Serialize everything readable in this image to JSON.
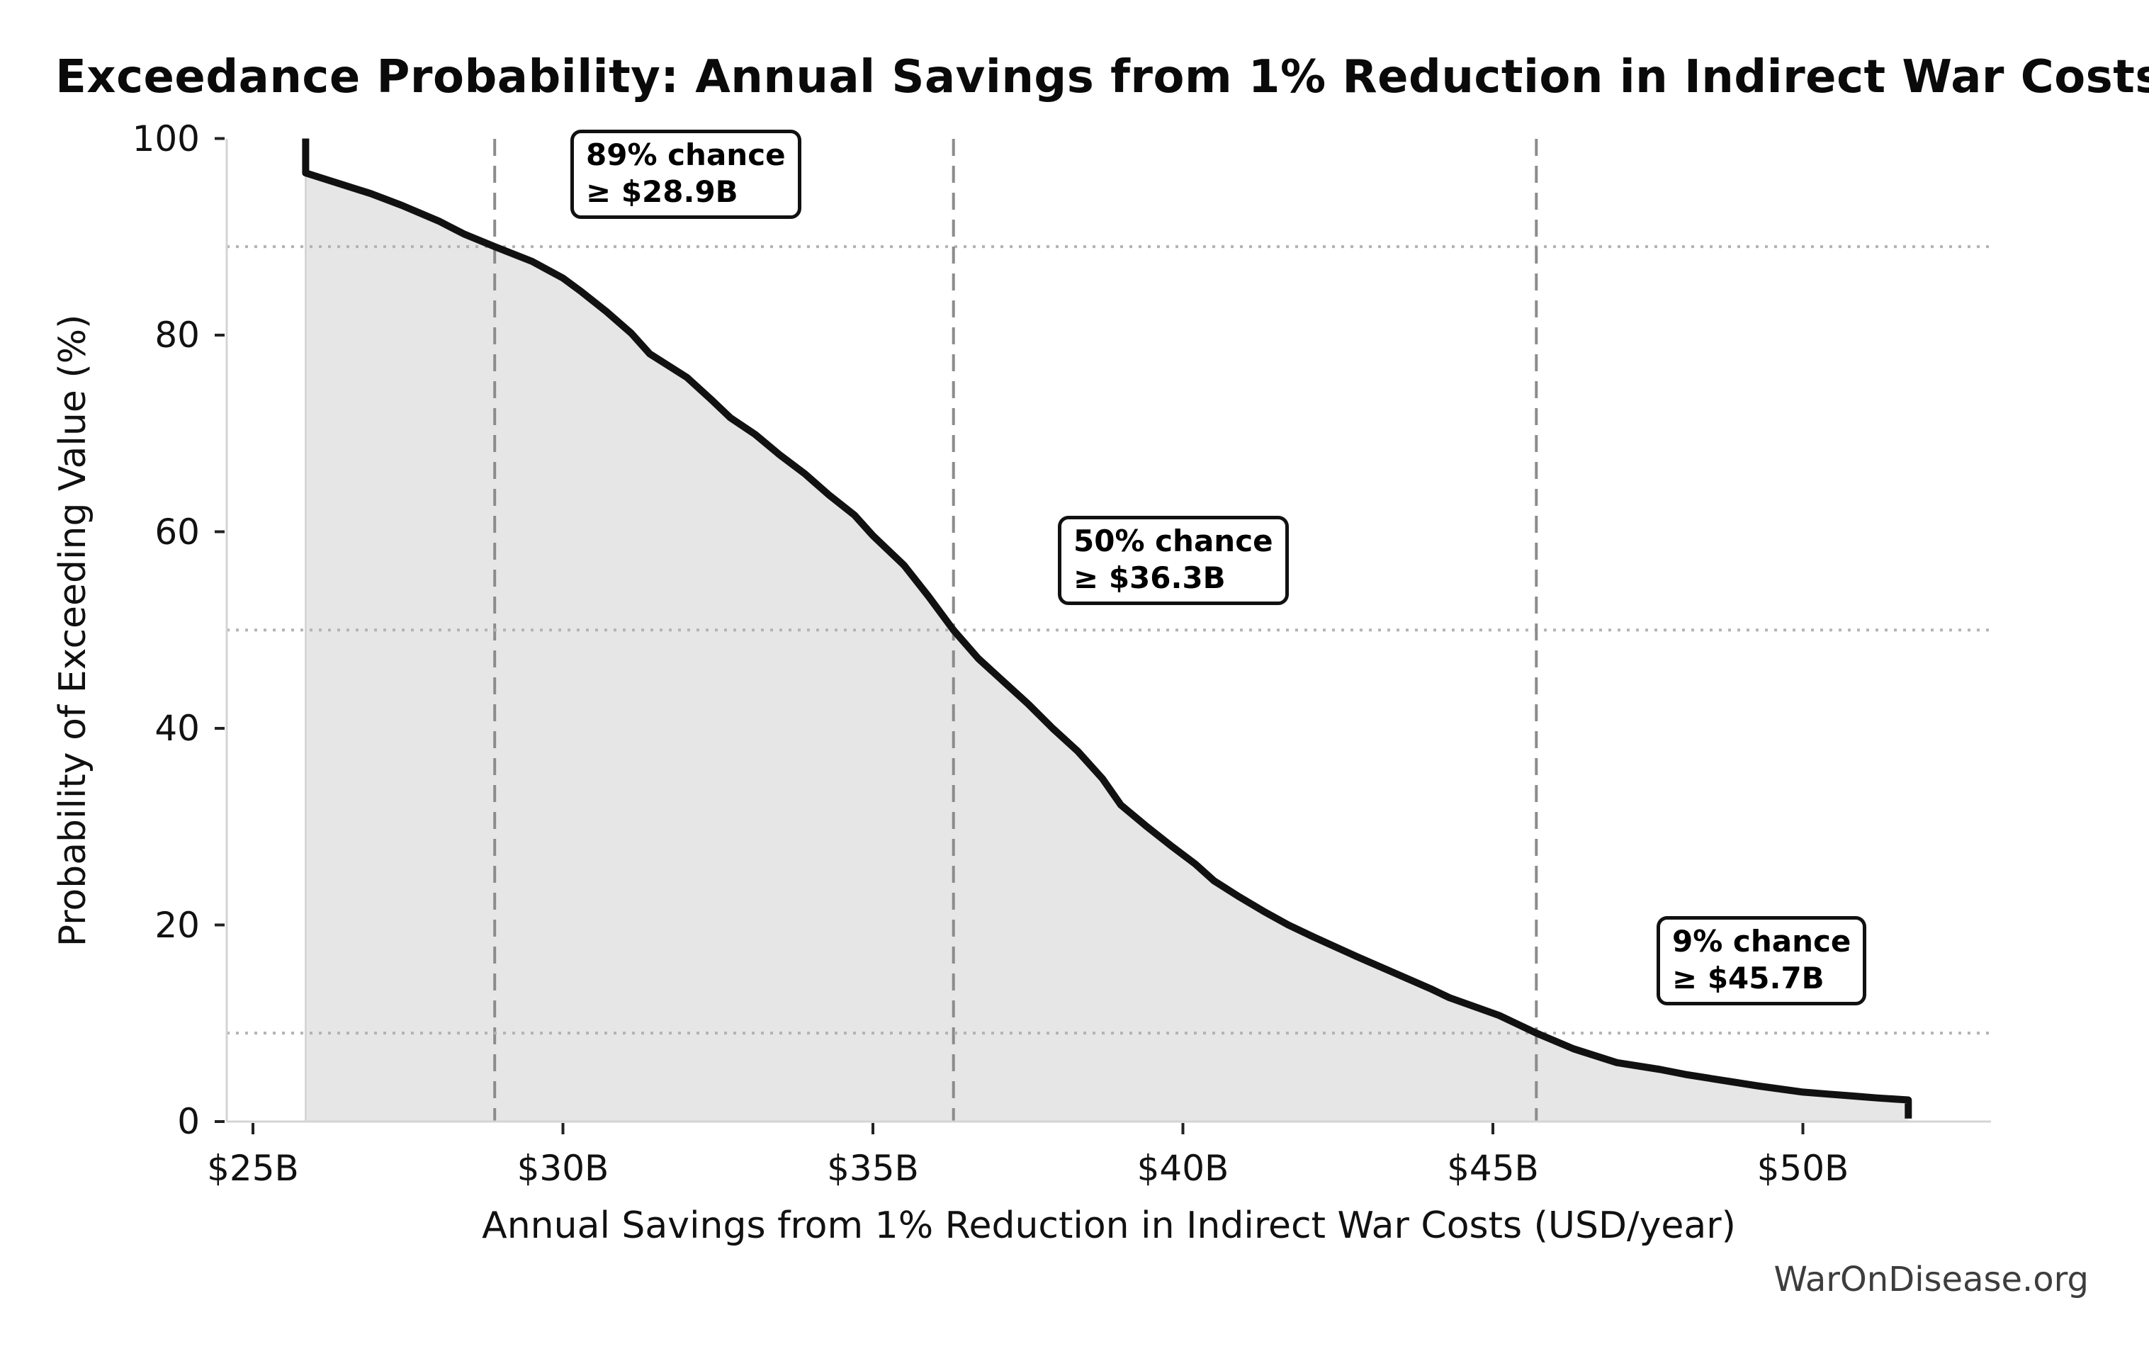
{
  "title": "Exceedance Probability: Annual Savings from 1% Reduction in Indirect War Costs",
  "watermark": "WarOnDisease.org",
  "axes": {
    "x_label": "Annual Savings from 1% Reduction in Indirect War Costs (USD/year)",
    "y_label": "Probability of Exceeding Value (%)",
    "x_tick_labels": [
      "$25B",
      "$30B",
      "$35B",
      "$40B",
      "$45B",
      "$50B"
    ],
    "x_tick_values": [
      25,
      30,
      35,
      40,
      45,
      50
    ],
    "y_tick_labels": [
      "0",
      "20",
      "40",
      "60",
      "80",
      "100"
    ],
    "y_tick_values": [
      0,
      20,
      40,
      60,
      80,
      100
    ]
  },
  "annotations": [
    {
      "percent_label": "89% chance",
      "value_label": "≥ $28.9B",
      "value_billion": 28.9,
      "probability_percent": 89
    },
    {
      "percent_label": "50% chance",
      "value_label": "≥ $36.3B",
      "value_billion": 36.3,
      "probability_percent": 50
    },
    {
      "percent_label": "9% chance",
      "value_label": "≥ $45.7B",
      "value_billion": 45.7,
      "probability_percent": 9
    }
  ],
  "colors": {
    "background": "#ffffff",
    "curve": "#111111",
    "area_fill": "#e6e6e6",
    "area_edge": "#d2d2d2",
    "spine": "#d4d4d4",
    "tick_mark": "#222222",
    "dashed_line": "#8c8c8c",
    "dotted_line": "#b3b3b3",
    "watermark_text": "#3d3d3d"
  },
  "chart_data": {
    "type": "line",
    "subtype": "exceedance-survival-curve",
    "title": "Exceedance Probability: Annual Savings from 1% Reduction in Indirect War Costs",
    "xlabel": "Annual Savings from 1% Reduction in Indirect War Costs (USD/year)",
    "ylabel": "Probability of Exceeding Value (%)",
    "x_unit": "billion USD per year",
    "xlim": [
      24.6,
      53.0
    ],
    "ylim": [
      0,
      100
    ],
    "grid": "dotted horizontal lines at annotated probabilities; dashed vertical lines at annotated values",
    "legend_position": "none",
    "thresholds": [
      {
        "probability_percent": 89,
        "value_billion": 28.9
      },
      {
        "probability_percent": 50,
        "value_billion": 36.3
      },
      {
        "probability_percent": 9,
        "value_billion": 45.7
      }
    ],
    "series": [
      {
        "name": "Probability of exceeding annual savings value",
        "style": "thick black curve with light gray area filled to y=0",
        "points": [
          [
            25.85,
            100.0
          ],
          [
            25.85,
            96.5
          ],
          [
            26.3,
            95.6
          ],
          [
            26.9,
            94.4
          ],
          [
            27.4,
            93.2
          ],
          [
            28.0,
            91.6
          ],
          [
            28.4,
            90.3
          ],
          [
            28.9,
            89.0
          ],
          [
            29.5,
            87.5
          ],
          [
            30.0,
            85.8
          ],
          [
            30.3,
            84.4
          ],
          [
            30.7,
            82.4
          ],
          [
            31.1,
            80.2
          ],
          [
            31.4,
            78.1
          ],
          [
            32.0,
            75.7
          ],
          [
            32.4,
            73.4
          ],
          [
            32.7,
            71.6
          ],
          [
            33.1,
            69.9
          ],
          [
            33.5,
            67.8
          ],
          [
            33.9,
            65.9
          ],
          [
            34.3,
            63.7
          ],
          [
            34.7,
            61.7
          ],
          [
            35.0,
            59.6
          ],
          [
            35.5,
            56.6
          ],
          [
            35.9,
            53.4
          ],
          [
            36.3,
            50.0
          ],
          [
            36.7,
            47.1
          ],
          [
            37.1,
            44.8
          ],
          [
            37.5,
            42.5
          ],
          [
            37.9,
            40.0
          ],
          [
            38.3,
            37.7
          ],
          [
            38.7,
            34.9
          ],
          [
            39.0,
            32.2
          ],
          [
            39.4,
            30.1
          ],
          [
            39.8,
            28.1
          ],
          [
            40.2,
            26.2
          ],
          [
            40.5,
            24.5
          ],
          [
            40.9,
            22.9
          ],
          [
            41.3,
            21.4
          ],
          [
            41.7,
            20.0
          ],
          [
            42.1,
            18.8
          ],
          [
            42.8,
            16.8
          ],
          [
            43.2,
            15.7
          ],
          [
            43.6,
            14.6
          ],
          [
            44.0,
            13.5
          ],
          [
            44.3,
            12.6
          ],
          [
            44.7,
            11.7
          ],
          [
            45.1,
            10.8
          ],
          [
            45.4,
            9.9
          ],
          [
            45.7,
            9.0
          ],
          [
            46.3,
            7.4
          ],
          [
            47.0,
            6.0
          ],
          [
            47.7,
            5.3
          ],
          [
            48.1,
            4.8
          ],
          [
            48.5,
            4.4
          ],
          [
            48.9,
            4.0
          ],
          [
            49.3,
            3.6
          ],
          [
            50.0,
            3.0
          ],
          [
            50.4,
            2.8
          ],
          [
            50.8,
            2.6
          ],
          [
            51.2,
            2.4
          ],
          [
            51.7,
            2.2
          ],
          [
            51.7,
            0.3
          ]
        ]
      }
    ]
  }
}
